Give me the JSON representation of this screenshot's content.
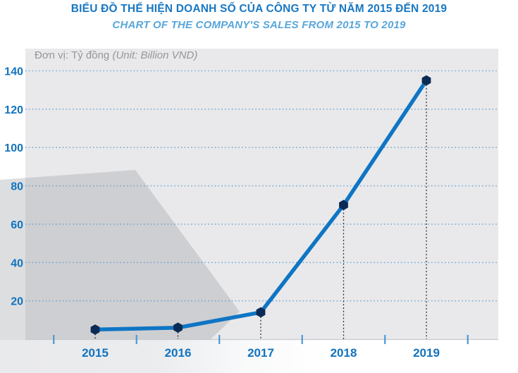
{
  "header": {
    "title": "BIỂU ĐỒ THỂ HIỆN DOANH SỐ CỦA CÔNG TY TỪ NĂM 2015 ĐẾN 2019",
    "subtitle": "CHART OF THE COMPANY'S SALES FROM 2015 TO 2019",
    "unit_prefix": "Đơn vị: Tỷ đồng",
    "unit_suffix": "(Unit: Billion VND)"
  },
  "chart_data": {
    "type": "line",
    "title": "BIỂU ĐỒ THỂ HIỆN DOANH SỐ CỦA CÔNG TY TỪ NĂM 2015 ĐẾN 2019",
    "subtitle": "CHART OF THE COMPANY'S SALES FROM 2015 TO 2019",
    "unit_label": "Đơn vị: Tỷ đồng (Unit: Billion VND)",
    "categories": [
      "2015",
      "2016",
      "2017",
      "2018",
      "2019"
    ],
    "values": [
      5,
      6,
      14,
      70,
      135
    ],
    "y_ticks": [
      20,
      40,
      60,
      80,
      100,
      120,
      140
    ],
    "ylim": [
      0,
      152
    ],
    "xlabel": "",
    "ylabel": "",
    "grid": "horizontal-dotted",
    "legend": "none",
    "marker_shape": "hexagon",
    "colors": {
      "title": "#1877c2",
      "subtitle": "#58a6da",
      "unit_text": "#95959c",
      "line": "#0f75c4",
      "marker": "#0b2b55",
      "axis_labels": "#1273be",
      "gridline": "#5598d2",
      "tick": "#4f97d4",
      "plot_bg": "#e9e9eb",
      "watermark": "rgba(150,152,159,0.32)",
      "drop_line": "#2f2f2f"
    }
  }
}
